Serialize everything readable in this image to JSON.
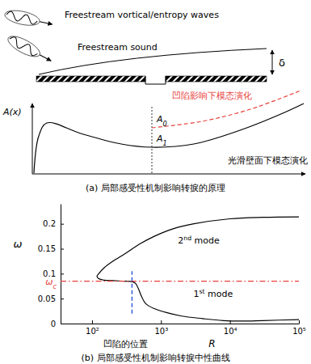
{
  "chart_data": [
    {
      "type": "schematic",
      "title": "(a) 局部感受性机制影响转捩的原理",
      "wave_labels": [
        "Freestream vortical/entropy waves",
        "Freestream sound"
      ],
      "thickness_label": "δ",
      "y_label": "A(x)",
      "amplitude_labels": [
        "A0",
        "A1"
      ],
      "curves": [
        {
          "name": "光滑壁面下模态演化",
          "color": "#000000",
          "line_style": "solid"
        },
        {
          "name": "凹陷影响下模态演化",
          "color": "#e8413c",
          "line_style": "dashed"
        }
      ]
    },
    {
      "type": "line",
      "title": "(b) 局部感受性机制影响转捩中性曲线",
      "x_label": "R",
      "y_label": "ω",
      "log": "x",
      "xlim": [
        35,
        100000
      ],
      "ylim": [
        0,
        0.24
      ],
      "xticks": [
        {
          "value": 100,
          "label": "10²"
        },
        {
          "value": 1000,
          "label": "10³"
        },
        {
          "value": 10000,
          "label": "10⁴"
        },
        {
          "value": 100000,
          "label": "10⁵"
        }
      ],
      "yticks": [
        0,
        0.05,
        0.1,
        0.15,
        0.2
      ],
      "series": [
        {
          "color": "#000000",
          "x": [
            100000,
            30000,
            10000,
            3000,
            1500,
            800,
            500,
            300,
            200,
            150,
            125,
            118,
            125,
            150,
            200,
            300,
            380,
            430,
            470,
            520,
            600,
            800,
            1200,
            2000,
            4000,
            8000,
            15000,
            30000,
            100000
          ],
          "values": [
            0.214,
            0.213,
            0.21,
            0.2,
            0.19,
            0.175,
            0.16,
            0.14,
            0.125,
            0.112,
            0.1,
            0.095,
            0.09,
            0.087,
            0.086,
            0.085,
            0.084,
            0.08,
            0.07,
            0.055,
            0.04,
            0.03,
            0.022,
            0.015,
            0.01,
            0.006,
            0.005,
            0.006,
            0.008
          ]
        }
      ],
      "annotations": [
        "2nd mode",
        "1st mode"
      ],
      "hlines": [
        {
          "value": 0.085,
          "label": "ωc",
          "color": "#e8413c",
          "line_style": "dashdot"
        }
      ],
      "vlines": [
        {
          "value": 380,
          "range": [
            0.02,
            0.105
          ],
          "label": "凹陷的位置",
          "color": "#2b55d6",
          "line_style": "dashed"
        }
      ]
    }
  ]
}
